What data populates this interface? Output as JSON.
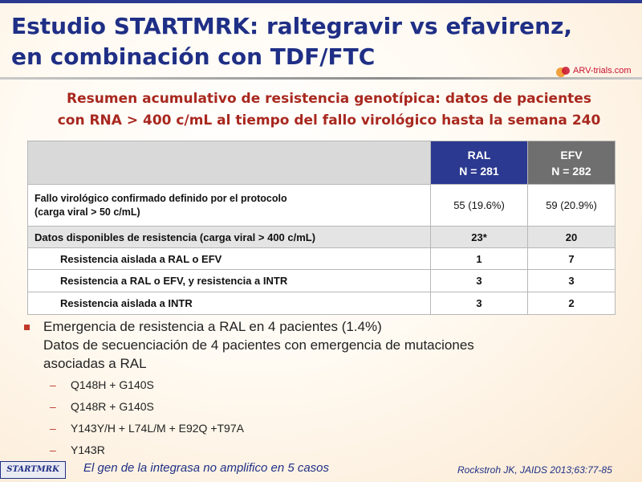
{
  "title": {
    "line1": "Estudio STARTMRK: raltegravir vs efavirenz,",
    "line2": "en combinación con TDF/FTC"
  },
  "logo": {
    "text": "ARV-trials.com",
    "icon": "arv-trials-logo-icon"
  },
  "subtitle": {
    "line1": "Resumen acumulativo de resistencia genotípica: datos de  pacientes",
    "line2": "con RNA > 400 c/mL al tiempo del fallo virológico hasta la semana 240"
  },
  "table": {
    "columns": [
      {
        "name": "RAL",
        "n": "N = 281",
        "color": "#2b3990"
      },
      {
        "name": "EFV",
        "n": "N = 282",
        "color": "#6f6f6f"
      }
    ],
    "rows": [
      {
        "label1": "Fallo virológico  confirmado definido por el protocolo",
        "label2": "(carga viral > 50 c/mL)",
        "ral": "55 (19.6%)",
        "efv": "59 (20.9%)"
      },
      {
        "label": "Datos disponibles de resistencia (carga viral > 400 c/mL)",
        "ral": "23*",
        "efv": "20"
      },
      {
        "label": "Resistencia aislada a RAL o EFV",
        "ral": "1",
        "efv": "7"
      },
      {
        "label": "Resistencia a RAL o EFV, y resistencia a INTR",
        "ral": "3",
        "efv": "3"
      },
      {
        "label": "Resistencia aislada a INTR",
        "ral": "3",
        "efv": "2"
      }
    ]
  },
  "bullets": {
    "main_line1": "Emergencia de resistencia a RAL en 4 pacientes (1.4%)",
    "main_line2": "Datos de secuenciación de 4 pacientes con emergencia de mutaciones",
    "main_line3": "asociadas a RAL",
    "dash": "–",
    "items": [
      "Q148H + G140S",
      "Q148R + G140S",
      "Y143Y/H + L74L/M + E92Q +T97A",
      "Y143R"
    ]
  },
  "footnote": "El gen de la integrasa no amplifico en 5 casos",
  "reference": "Rockstroh JK, JAIDS 2013;63:77-85",
  "brand": "STARTMRK"
}
